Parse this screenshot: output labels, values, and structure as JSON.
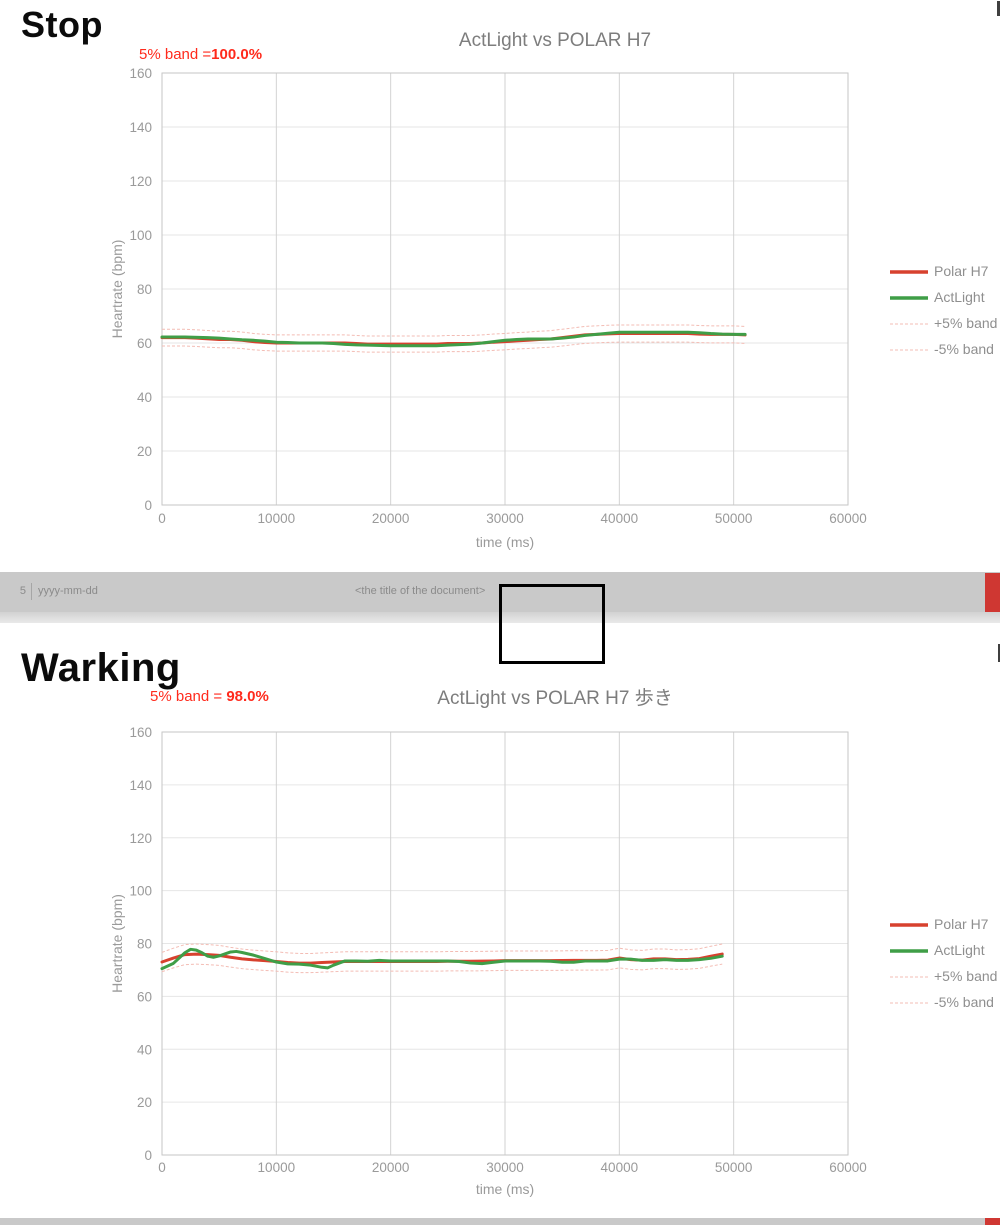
{
  "slide1": {
    "title": "Stop",
    "annotation": {
      "prefix": "5% band =",
      "value": "100.0%"
    },
    "footer": {
      "page_number": "5",
      "date": "yyyy-mm-dd",
      "doc_title": "<the title of the document>"
    }
  },
  "slide2": {
    "title": "Warking",
    "annotation": {
      "prefix": "5% band = ",
      "value": "98.0%"
    }
  },
  "colors": {
    "polar_red": "#d7412e",
    "actlight_green": "#3f9e47",
    "band_pink": "#f3bcb4",
    "annotation_red": "#ff2a1c",
    "title_gray": "#7d7d7d",
    "tick_gray": "#9a9a9a",
    "legend_gray": "#8f8f8f",
    "grid_vertical": "#d2d2d2",
    "grid_horizontal": "#e6e6e6",
    "plot_border": "#c6c6c6",
    "footer_bar": "#c9c9c9",
    "footer_red": "#cf3732"
  },
  "chart_data": [
    {
      "type": "line",
      "title": "ActLight vs POLAR H7",
      "xlabel": "time (ms)",
      "ylabel": "Heartrate (bpm)",
      "xlim": [
        0,
        60000
      ],
      "ylim": [
        0,
        160
      ],
      "xticks": [
        0,
        10000,
        20000,
        30000,
        40000,
        50000,
        60000
      ],
      "yticks": [
        0,
        20,
        40,
        60,
        80,
        100,
        120,
        140,
        160
      ],
      "grid": true,
      "legend_position": "right",
      "legend": [
        "Polar H7",
        "ActLight",
        "+5% band",
        "-5% band"
      ],
      "band_pct": 5,
      "band_source": "Polar H7",
      "series": [
        {
          "name": "Polar H7",
          "color": "#d7412e",
          "width": 3,
          "points": [
            [
              0,
              62
            ],
            [
              2000,
              62
            ],
            [
              3000,
              61.8
            ],
            [
              5000,
              61.3
            ],
            [
              6000,
              61.3
            ],
            [
              7000,
              61
            ],
            [
              8000,
              60.5
            ],
            [
              9000,
              60.2
            ],
            [
              10000,
              60
            ],
            [
              12000,
              60
            ],
            [
              14000,
              60
            ],
            [
              16000,
              60
            ],
            [
              17000,
              59.8
            ],
            [
              18000,
              59.6
            ],
            [
              20000,
              59.6
            ],
            [
              22000,
              59.6
            ],
            [
              24000,
              59.6
            ],
            [
              25000,
              59.8
            ],
            [
              27000,
              59.8
            ],
            [
              28000,
              60
            ],
            [
              29000,
              60.3
            ],
            [
              30000,
              60.5
            ],
            [
              31000,
              60.8
            ],
            [
              32000,
              61
            ],
            [
              33000,
              61.3
            ],
            [
              34000,
              61.5
            ],
            [
              35000,
              62
            ],
            [
              36000,
              62.5
            ],
            [
              37000,
              63
            ],
            [
              38000,
              63.2
            ],
            [
              39000,
              63.4
            ],
            [
              40000,
              63.5
            ],
            [
              42000,
              63.5
            ],
            [
              44000,
              63.5
            ],
            [
              46000,
              63.5
            ],
            [
              47000,
              63.3
            ],
            [
              48000,
              63.2
            ],
            [
              50000,
              63.2
            ],
            [
              51000,
              63
            ]
          ]
        },
        {
          "name": "ActLight",
          "color": "#3f9e47",
          "width": 3,
          "points": [
            [
              0,
              62.2
            ],
            [
              2000,
              62.2
            ],
            [
              4000,
              62
            ],
            [
              5000,
              61.8
            ],
            [
              6000,
              61.5
            ],
            [
              7000,
              61.2
            ],
            [
              8000,
              61
            ],
            [
              9000,
              60.7
            ],
            [
              10000,
              60.3
            ],
            [
              11000,
              60.2
            ],
            [
              12000,
              60
            ],
            [
              14000,
              60
            ],
            [
              15000,
              59.8
            ],
            [
              16000,
              59.5
            ],
            [
              17000,
              59.3
            ],
            [
              18000,
              59.2
            ],
            [
              20000,
              59
            ],
            [
              22000,
              59
            ],
            [
              24000,
              59
            ],
            [
              25000,
              59.2
            ],
            [
              26000,
              59.4
            ],
            [
              27000,
              59.6
            ],
            [
              28000,
              60
            ],
            [
              29000,
              60.5
            ],
            [
              30000,
              61
            ],
            [
              31000,
              61.3
            ],
            [
              32000,
              61.5
            ],
            [
              34000,
              61.5
            ],
            [
              35000,
              61.8
            ],
            [
              36000,
              62.2
            ],
            [
              37000,
              62.8
            ],
            [
              38000,
              63.2
            ],
            [
              39000,
              63.6
            ],
            [
              40000,
              64
            ],
            [
              42000,
              64
            ],
            [
              44000,
              64
            ],
            [
              46000,
              64
            ],
            [
              47000,
              63.8
            ],
            [
              48000,
              63.5
            ],
            [
              49000,
              63.3
            ],
            [
              50000,
              63.2
            ],
            [
              51000,
              63.2
            ]
          ]
        }
      ]
    },
    {
      "type": "line",
      "title": "ActLight vs POLAR H7 歩き",
      "xlabel": "time (ms)",
      "ylabel": "Heartrate (bpm)",
      "xlim": [
        0,
        60000
      ],
      "ylim": [
        0,
        160
      ],
      "xticks": [
        0,
        10000,
        20000,
        30000,
        40000,
        50000,
        60000
      ],
      "yticks": [
        0,
        20,
        40,
        60,
        80,
        100,
        120,
        140,
        160
      ],
      "grid": true,
      "legend_position": "right",
      "legend": [
        "Polar H7",
        "ActLight",
        "+5% band",
        "-5% band"
      ],
      "band_pct": 5,
      "band_source": "Polar H7",
      "series": [
        {
          "name": "Polar H7",
          "color": "#d7412e",
          "width": 3,
          "points": [
            [
              0,
              73
            ],
            [
              1000,
              74.5
            ],
            [
              2000,
              75.8
            ],
            [
              3000,
              76
            ],
            [
              4000,
              75.8
            ],
            [
              5000,
              75.5
            ],
            [
              6000,
              74.8
            ],
            [
              7000,
              74.2
            ],
            [
              8000,
              73.8
            ],
            [
              9000,
              73.5
            ],
            [
              10000,
              73.2
            ],
            [
              11000,
              72.8
            ],
            [
              12000,
              72.6
            ],
            [
              13000,
              72.6
            ],
            [
              14000,
              72.8
            ],
            [
              15000,
              73
            ],
            [
              16000,
              73.2
            ],
            [
              18000,
              73.2
            ],
            [
              20000,
              73.2
            ],
            [
              22000,
              73.2
            ],
            [
              24000,
              73.2
            ],
            [
              25000,
              73.3
            ],
            [
              27000,
              73.3
            ],
            [
              29000,
              73.4
            ],
            [
              30000,
              73.5
            ],
            [
              32000,
              73.5
            ],
            [
              34000,
              73.5
            ],
            [
              36000,
              73.6
            ],
            [
              38000,
              73.6
            ],
            [
              39000,
              73.7
            ],
            [
              40000,
              74.5
            ],
            [
              41000,
              73.9
            ],
            [
              42000,
              73.7
            ],
            [
              43000,
              74.2
            ],
            [
              44000,
              74.2
            ],
            [
              45000,
              73.9
            ],
            [
              46000,
              74
            ],
            [
              47000,
              74.3
            ],
            [
              48000,
              75.2
            ],
            [
              49000,
              76
            ]
          ]
        },
        {
          "name": "ActLight",
          "color": "#3f9e47",
          "width": 3,
          "points": [
            [
              0,
              70.5
            ],
            [
              1000,
              72.5
            ],
            [
              2000,
              76.5
            ],
            [
              2500,
              77.8
            ],
            [
              3000,
              77.5
            ],
            [
              3500,
              76.5
            ],
            [
              4000,
              75.2
            ],
            [
              4500,
              74.8
            ],
            [
              5000,
              75.3
            ],
            [
              6000,
              76.8
            ],
            [
              6500,
              77
            ],
            [
              7000,
              76.6
            ],
            [
              8000,
              75.6
            ],
            [
              9000,
              74.3
            ],
            [
              10000,
              73
            ],
            [
              11000,
              72.3
            ],
            [
              12000,
              72.2
            ],
            [
              13000,
              71.8
            ],
            [
              14000,
              71
            ],
            [
              14500,
              70.8
            ],
            [
              15000,
              71.8
            ],
            [
              16000,
              73.4
            ],
            [
              17000,
              73.4
            ],
            [
              18000,
              73.3
            ],
            [
              19000,
              73.6
            ],
            [
              20000,
              73.4
            ],
            [
              22000,
              73.4
            ],
            [
              24000,
              73.4
            ],
            [
              25000,
              73.4
            ],
            [
              26000,
              73.2
            ],
            [
              27000,
              72.6
            ],
            [
              28000,
              72.4
            ],
            [
              29000,
              72.9
            ],
            [
              30000,
              73.4
            ],
            [
              32000,
              73.4
            ],
            [
              33000,
              73.4
            ],
            [
              34000,
              73.3
            ],
            [
              35000,
              72.9
            ],
            [
              36000,
              72.9
            ],
            [
              37000,
              73.4
            ],
            [
              38000,
              73.4
            ],
            [
              39000,
              73.4
            ],
            [
              40000,
              74.1
            ],
            [
              41000,
              74.1
            ],
            [
              42000,
              73.6
            ],
            [
              43000,
              73.6
            ],
            [
              44000,
              73.9
            ],
            [
              45000,
              73.6
            ],
            [
              46000,
              73.6
            ],
            [
              47000,
              73.9
            ],
            [
              48000,
              74.4
            ],
            [
              49000,
              75.2
            ]
          ]
        }
      ]
    }
  ]
}
